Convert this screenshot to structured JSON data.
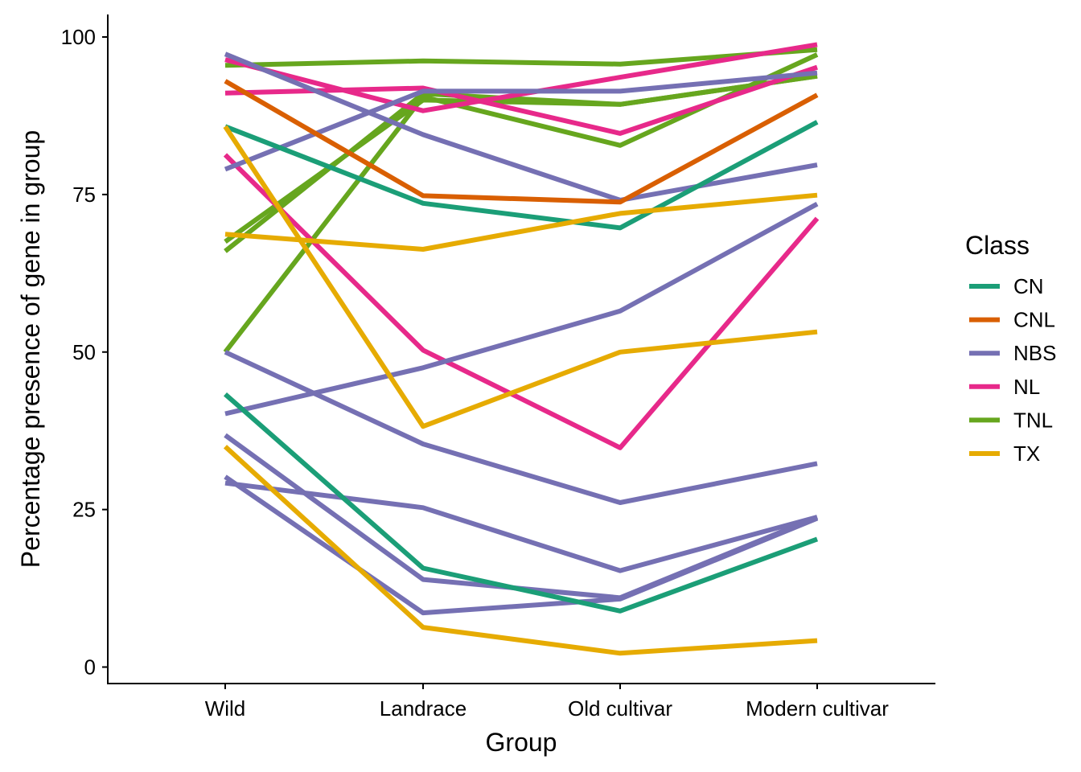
{
  "chart_data": {
    "type": "line",
    "title": "",
    "xlabel": "Group",
    "ylabel": "Percentage presence of gene in group",
    "categories": [
      "Wild",
      "Landrace",
      "Old cultivar",
      "Modern cultivar"
    ],
    "yticks": [
      "0",
      "25",
      "50",
      "75",
      "100"
    ],
    "ylim": [
      -2.5,
      102.5
    ],
    "grid": false,
    "legend": {
      "title": "Class",
      "placement": "right",
      "entries": [
        {
          "name": "CN",
          "color": "#1B9E77"
        },
        {
          "name": "CNL",
          "color": "#D95F02"
        },
        {
          "name": "NBS",
          "color": "#7570B3"
        },
        {
          "name": "NL",
          "color": "#E7298A"
        },
        {
          "name": "TNL",
          "color": "#66A61E"
        },
        {
          "name": "TX",
          "color": "#E6AB02"
        }
      ]
    },
    "series": [
      {
        "class": "TNL",
        "values": [
          95.5,
          96.2,
          95.7,
          98.0
        ]
      },
      {
        "class": "TNL",
        "values": [
          66.0,
          91.0,
          89.3,
          93.8
        ]
      },
      {
        "class": "TNL",
        "values": [
          67.5,
          90.0,
          89.3,
          93.8
        ]
      },
      {
        "class": "TNL",
        "values": [
          50.0,
          90.5,
          82.8,
          97.2
        ]
      },
      {
        "class": "NL",
        "values": [
          96.4,
          88.3,
          93.6,
          98.8
        ]
      },
      {
        "class": "NL",
        "values": [
          91.1,
          91.9,
          84.7,
          95.2
        ]
      },
      {
        "class": "NL",
        "values": [
          81.3,
          50.3,
          34.8,
          71.2
        ]
      },
      {
        "class": "NBS",
        "values": [
          97.3,
          84.5,
          74.1,
          79.7
        ]
      },
      {
        "class": "NBS",
        "values": [
          79.0,
          91.4,
          91.4,
          94.3
        ]
      },
      {
        "class": "NBS",
        "values": [
          50.0,
          35.4,
          26.1,
          32.3
        ]
      },
      {
        "class": "NBS",
        "values": [
          40.2,
          47.5,
          56.5,
          73.5
        ]
      },
      {
        "class": "NBS",
        "values": [
          36.8,
          13.9,
          11.0,
          23.8
        ]
      },
      {
        "class": "NBS",
        "values": [
          30.2,
          8.6,
          10.8,
          23.6
        ]
      },
      {
        "class": "NBS",
        "values": [
          29.2,
          25.3,
          15.3,
          23.8
        ]
      },
      {
        "class": "CNL",
        "values": [
          93.0,
          74.8,
          73.8,
          90.8
        ]
      },
      {
        "class": "CN",
        "values": [
          85.8,
          73.6,
          69.7,
          86.5
        ]
      },
      {
        "class": "CN",
        "values": [
          43.3,
          15.7,
          8.9,
          20.3
        ]
      },
      {
        "class": "TX",
        "values": [
          85.8,
          38.2,
          50.0,
          53.2
        ]
      },
      {
        "class": "TX",
        "values": [
          68.7,
          66.3,
          72.0,
          74.9
        ]
      },
      {
        "class": "TX",
        "values": [
          35.0,
          6.3,
          2.2,
          4.2
        ]
      }
    ]
  }
}
